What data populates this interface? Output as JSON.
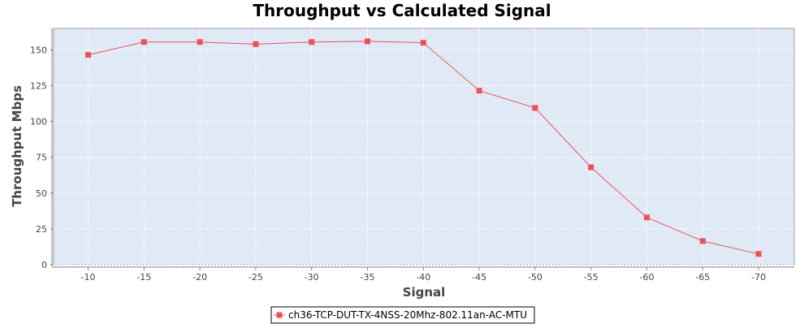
{
  "chart_data": {
    "type": "line",
    "title": "Throughput vs Calculated Signal",
    "xlabel": "Signal",
    "ylabel": "Throughput Mbps",
    "categories": [
      "-10",
      "-15",
      "-20",
      "-25",
      "-30",
      "-35",
      "-40",
      "-45",
      "-50",
      "-55",
      "-60",
      "-65",
      "-70"
    ],
    "series": [
      {
        "name": "ch36-TCP-DUT-TX-4NSS-20Mhz-802.11an-AC-MTU",
        "color": "#f05050",
        "values": [
          146.5,
          155.5,
          155.5,
          154,
          155.5,
          156,
          155,
          121.5,
          109.5,
          68,
          33,
          16.5,
          7.5
        ]
      }
    ],
    "ylim": [
      0,
      165
    ],
    "yticks": [
      0,
      25,
      50,
      75,
      100,
      125,
      150
    ],
    "grid": true,
    "plot_background": "#e0eaf7",
    "legend_position": "bottom"
  }
}
